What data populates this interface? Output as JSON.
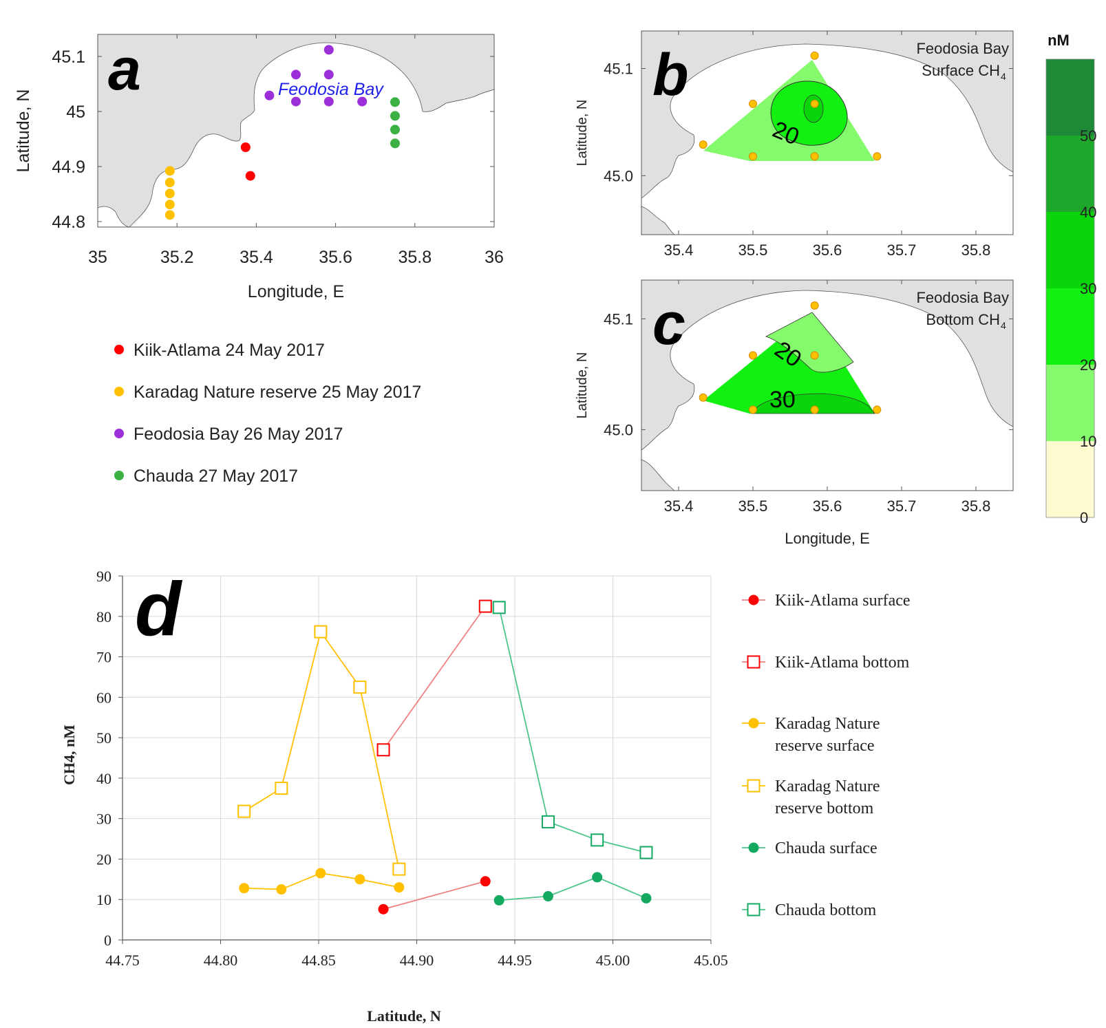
{
  "panels": {
    "a": {
      "letter": "a",
      "bay_label": "Feodosia Bay",
      "xlabel": "Longitude, E",
      "ylabel": "Latitude, N",
      "xlim": [
        35,
        36
      ],
      "ylim": [
        44.79,
        45.14
      ],
      "xticks": [
        "35",
        "35.2",
        "35.4",
        "35.6",
        "35.8",
        "36"
      ],
      "yticks": [
        "44.8",
        "44.9",
        "45",
        "45.1"
      ],
      "legend": [
        {
          "label": "Kiik-Atlama 24 May 2017",
          "color": "#ff0000"
        },
        {
          "label": "Karadag Nature reserve 25 May 2017",
          "color": "#ffc000"
        },
        {
          "label": "Feodosia Bay 26 May 2017",
          "color": "#9b30d9"
        },
        {
          "label": "Chauda 27 May 2017",
          "color": "#3cb043"
        }
      ]
    },
    "b": {
      "letter": "b",
      "title_line1": "Feodosia Bay",
      "title_line2": "Surface CH",
      "subscript": "4",
      "contour_label": "20",
      "ylabel": "Latitude, N",
      "xticks": [
        "35.4",
        "35.5",
        "35.6",
        "35.7",
        "35.8"
      ],
      "yticks": [
        "45.0",
        "45.1"
      ]
    },
    "c": {
      "letter": "c",
      "title_line1": "Feodosia Bay",
      "title_line2": "Bottom CH",
      "subscript": "4",
      "contour_label_1": "20",
      "contour_label_2": "30",
      "xlabel": "Longitude, E",
      "ylabel": "Latitude, N",
      "xticks": [
        "35.4",
        "35.5",
        "35.6",
        "35.7",
        "35.8"
      ],
      "yticks": [
        "45.0",
        "45.1"
      ]
    },
    "colorbar": {
      "title": "nM",
      "ticks": [
        "0",
        "10",
        "20",
        "30",
        "40",
        "50"
      ],
      "colors": [
        "#fffbd0",
        "#85fa6c",
        "#12f012",
        "#0ad40a",
        "#1ea82b",
        "#1e8a38"
      ]
    },
    "d": {
      "letter": "d",
      "xlabel": "Latitude, N",
      "ylabel": "CH4, nM",
      "xticks": [
        "44.75",
        "44.80",
        "44.85",
        "44.90",
        "44.95",
        "45.00",
        "45.05"
      ],
      "yticks": [
        "0",
        "10",
        "20",
        "30",
        "40",
        "50",
        "60",
        "70",
        "80",
        "90"
      ],
      "legend": [
        {
          "label": "Kiik-Atlama surface"
        },
        {
          "label": "Kiik-Atlama bottom"
        },
        {
          "label": "Karadag Nature",
          "label2": "reserve surface"
        },
        {
          "label": "Karadag Nature",
          "label2": "reserve bottom"
        },
        {
          "label": "Chauda surface"
        },
        {
          "label": "Chauda bottom"
        }
      ]
    }
  },
  "chart_data": [
    {
      "type": "scatter",
      "panel": "a",
      "title": "",
      "xlabel": "Longitude, E",
      "ylabel": "Latitude, N",
      "xlim": [
        35,
        36
      ],
      "ylim": [
        44.79,
        45.14
      ],
      "series": [
        {
          "name": "Kiik-Atlama 24 May 2017",
          "color": "#ff0000",
          "points": [
            [
              35.373,
              44.935
            ],
            [
              35.385,
              44.883
            ]
          ]
        },
        {
          "name": "Karadag Nature reserve 25 May 2017",
          "color": "#ffc000",
          "points": [
            [
              35.182,
              44.892
            ],
            [
              35.182,
              44.871
            ],
            [
              35.182,
              44.851
            ],
            [
              35.182,
              44.831
            ],
            [
              35.182,
              44.812
            ]
          ]
        },
        {
          "name": "Feodosia Bay 26 May 2017",
          "color": "#9b30d9",
          "points": [
            [
              35.433,
              45.029
            ],
            [
              35.5,
              45.067
            ],
            [
              35.583,
              45.067
            ],
            [
              35.583,
              45.112
            ],
            [
              35.5,
              45.018
            ],
            [
              35.583,
              45.018
            ],
            [
              35.667,
              45.018
            ]
          ]
        },
        {
          "name": "Chauda 27 May 2017",
          "color": "#3cb043",
          "points": [
            [
              35.75,
              45.017
            ],
            [
              35.75,
              44.992
            ],
            [
              35.75,
              44.967
            ],
            [
              35.75,
              44.942
            ]
          ]
        }
      ]
    },
    {
      "type": "heatmap",
      "panel": "b",
      "title": "Feodosia Bay Surface CH4",
      "xlim": [
        35.35,
        35.85
      ],
      "ylim": [
        44.945,
        45.135
      ],
      "stations": [
        [
          35.433,
          45.029
        ],
        [
          35.5,
          45.067
        ],
        [
          35.583,
          45.067
        ],
        [
          35.583,
          45.112
        ],
        [
          35.5,
          45.018
        ],
        [
          35.583,
          45.018
        ],
        [
          35.667,
          45.018
        ]
      ],
      "contour_levels": [
        0,
        10,
        20,
        30,
        40,
        50
      ]
    },
    {
      "type": "heatmap",
      "panel": "c",
      "title": "Feodosia Bay Bottom CH4",
      "xlim": [
        35.35,
        35.85
      ],
      "ylim": [
        44.945,
        45.135
      ],
      "stations": [
        [
          35.433,
          45.029
        ],
        [
          35.5,
          45.067
        ],
        [
          35.583,
          45.067
        ],
        [
          35.583,
          45.112
        ],
        [
          35.5,
          45.018
        ],
        [
          35.583,
          45.018
        ],
        [
          35.667,
          45.018
        ]
      ],
      "contour_levels": [
        0,
        10,
        20,
        30,
        40,
        50
      ]
    },
    {
      "type": "line",
      "panel": "d",
      "xlabel": "Latitude, N",
      "ylabel": "CH4, nM",
      "xlim": [
        44.75,
        45.05
      ],
      "ylim": [
        0,
        90
      ],
      "series": [
        {
          "name": "Kiik-Atlama surface",
          "color": "#ff0000",
          "line": "#f08080",
          "marker": "circle",
          "x": [
            44.883,
            44.935
          ],
          "values": [
            7.6,
            14.5
          ]
        },
        {
          "name": "Kiik-Atlama bottom",
          "color": "#ff0000",
          "line": "#f08080",
          "marker": "square",
          "x": [
            44.883,
            44.935
          ],
          "values": [
            47,
            82.5
          ]
        },
        {
          "name": "Karadag Nature reserve surface",
          "color": "#ffc000",
          "line": "#ffc000",
          "marker": "circle",
          "x": [
            44.812,
            44.831,
            44.851,
            44.871,
            44.891
          ],
          "values": [
            12.8,
            12.5,
            16.5,
            15,
            13
          ]
        },
        {
          "name": "Karadag Nature reserve bottom",
          "color": "#ffc000",
          "line": "#ffc000",
          "marker": "square",
          "x": [
            44.812,
            44.831,
            44.851,
            44.871,
            44.891
          ],
          "values": [
            31.8,
            37.5,
            76.2,
            62.5,
            17.5
          ]
        },
        {
          "name": "Chauda surface",
          "color": "#14a860",
          "line": "#4cc58a",
          "marker": "circle",
          "x": [
            44.942,
            44.967,
            44.992,
            45.017
          ],
          "values": [
            9.8,
            10.8,
            15.5,
            10.3
          ]
        },
        {
          "name": "Chauda bottom",
          "color": "#14a860",
          "line": "#4cc58a",
          "marker": "square",
          "x": [
            44.942,
            44.967,
            44.992,
            45.017
          ],
          "values": [
            82.2,
            29.2,
            24.7,
            21.6
          ]
        }
      ]
    }
  ]
}
